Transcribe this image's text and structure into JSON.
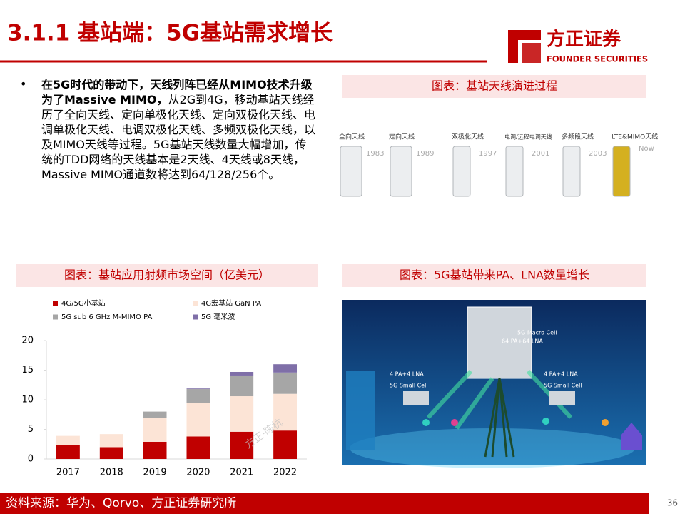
{
  "header": {
    "title": "3.1.1 基站端：5G基站需求增长",
    "logo_cn": "方正证券",
    "logo_en": "FOUNDER SECURITIES"
  },
  "bullet": {
    "bold": "在5G时代的带动下，天线列阵已经从MIMO技术升级为了Massive MIMO，",
    "text": "从2G到4G，移动基站天线经历了全向天线、定向单极化天线、定向双极化天线、电调单极化天线、电调双极化天线、多频双极化天线，以及MIMO天线等过程。5G基站天线数量大幅增加，传统的TDD网络的天线基本是2天线、4天线或8天线，Massive MIMO通道数将达到64/128/256个。"
  },
  "captions": [
    "图表：基站天线演进过程",
    "图表：基站应用射频市场空间（亿美元）",
    "图表：5G基站带来PA、LNA数量增长"
  ],
  "antenna_figure": {
    "items": [
      {
        "name": "全向天线",
        "year": "1983"
      },
      {
        "name": "定向天线",
        "year": "1989"
      },
      {
        "name": "双极化天线",
        "year": "1997"
      },
      {
        "name": "电调/远程电调天线",
        "year": "2001"
      },
      {
        "name": "多频段天线",
        "year": "2003"
      },
      {
        "name": "LTE&MIMO天线",
        "year": "Now"
      }
    ]
  },
  "network_figure": {
    "macro": "5G Macro Cell",
    "macro_spec": "64 PA+64 LNA",
    "small_cells": [
      {
        "spec": "4 PA+4 LNA",
        "name": "5G Small Cell"
      },
      {
        "spec": "4 PA+4 LNA",
        "name": "5G Small Cell"
      }
    ]
  },
  "chart_data": {
    "type": "bar",
    "stacked": true,
    "legend": "top",
    "watermark": "方正·陈杭",
    "categories": [
      "2017",
      "2018",
      "2019",
      "2020",
      "2021",
      "2022"
    ],
    "series": [
      {
        "name": "4G/5G小基站",
        "color": "#c00000",
        "values": [
          2.3,
          2.0,
          2.9,
          3.8,
          4.6,
          4.8
        ]
      },
      {
        "name": "4G宏基站 GaN PA",
        "color": "#fce4d6",
        "values": [
          1.6,
          2.2,
          4.0,
          5.6,
          6.0,
          6.2
        ]
      },
      {
        "name": "5G sub 6 GHz M-MIMO PA",
        "color": "#a6a6a6",
        "values": [
          0,
          0,
          1.1,
          2.4,
          3.5,
          3.6
        ]
      },
      {
        "name": "5G 毫米波",
        "color": "#7f6fa8",
        "values": [
          0,
          0,
          0,
          0.1,
          0.6,
          1.4
        ]
      }
    ],
    "ylim": [
      0,
      20
    ],
    "yticks": [
      0,
      5,
      10,
      15,
      20
    ]
  },
  "footer": {
    "source": "资料来源：华为、Qorvo、方正证券研究所",
    "page": "36"
  }
}
